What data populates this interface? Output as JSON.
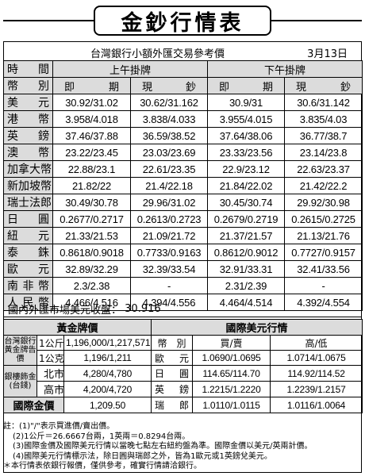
{
  "title": "金鈔行情表",
  "subtitle": "台灣銀行小額外匯交易參考價",
  "date": "3月13日",
  "fx_header": {
    "time_label": "時　間",
    "currency_label": "幣　別",
    "am_label": "上午掛牌",
    "pm_label": "下午掛牌",
    "spot_label": "即期",
    "cash_label": "現鈔"
  },
  "fx_rows": [
    {
      "currency": "美元",
      "am_spot": "30.92/31.02",
      "am_cash": "30.62/31.162",
      "pm_spot": "30.9/31",
      "pm_cash": "30.6/31.142"
    },
    {
      "currency": "港幣",
      "am_spot": "3.958/4.018",
      "am_cash": "3.838/4.033",
      "pm_spot": "3.955/4.015",
      "pm_cash": "3.835/4.03"
    },
    {
      "currency": "英鎊",
      "am_spot": "37.46/37.88",
      "am_cash": "36.59/38.52",
      "pm_spot": "37.64/38.06",
      "pm_cash": "36.77/38.7"
    },
    {
      "currency": "澳幣",
      "am_spot": "23.22/23.45",
      "am_cash": "23.03/23.69",
      "pm_spot": "23.33/23.56",
      "pm_cash": "23.14/23.8"
    },
    {
      "currency": "加拿大幣",
      "am_spot": "22.88/23.1",
      "am_cash": "22.61/23.35",
      "pm_spot": "22.9/23.12",
      "pm_cash": "22.63/23.37"
    },
    {
      "currency": "新加坡幣",
      "am_spot": "21.82/22",
      "am_cash": "21.4/22.18",
      "pm_spot": "21.84/22.02",
      "pm_cash": "21.42/22.2"
    },
    {
      "currency": "瑞士法郎",
      "am_spot": "30.49/30.78",
      "am_cash": "29.96/31.02",
      "pm_spot": "30.45/30.74",
      "pm_cash": "29.92/30.98"
    },
    {
      "currency": "日圓",
      "am_spot": "0.2677/0.2717",
      "am_cash": "0.2613/0.2723",
      "pm_spot": "0.2679/0.2719",
      "pm_cash": "0.2615/0.2725"
    },
    {
      "currency": "紐元",
      "am_spot": "21.33/21.53",
      "am_cash": "21.09/21.72",
      "pm_spot": "21.37/21.57",
      "pm_cash": "21.13/21.76"
    },
    {
      "currency": "泰銖",
      "am_spot": "0.8618/0.9018",
      "am_cash": "0.7733/0.9163",
      "pm_spot": "0.8612/0.9012",
      "pm_cash": "0.7727/0.9157"
    },
    {
      "currency": "歐元",
      "am_spot": "32.89/32.29",
      "am_cash": "32.39/33.54",
      "pm_spot": "32.91/33.31",
      "pm_cash": "32.41/33.56"
    },
    {
      "currency": "南非幣",
      "am_spot": "2.3/2.38",
      "am_cash": "-",
      "pm_spot": "2.31/2.39",
      "pm_cash": "-"
    },
    {
      "currency": "人民幣",
      "am_spot": "4.466/4.516",
      "am_cash": "4.394/4.556",
      "pm_spot": "4.464/4.514",
      "pm_cash": "4.392/4.554"
    }
  ],
  "usd_close": {
    "label": "國內外匯市場美元收盤：",
    "value": "30.916"
  },
  "gold": {
    "header": "黃金牌價",
    "bank_label": "台灣銀行黃金牌告價",
    "rows": [
      {
        "unit": "1公斤",
        "price": "1,196,000/1,217,571"
      },
      {
        "unit": "1公克",
        "price": "1,196/1,211"
      }
    ],
    "jewelry_label": "銀樓飾金(台錢)",
    "cities": [
      {
        "city": "北市",
        "price": "4,280/4,780"
      },
      {
        "city": "高市",
        "price": "4,200/4,720"
      }
    ],
    "intl_label": "國際金價",
    "intl_value": "1,209.50"
  },
  "intl_usd": {
    "header": "國際美元行情",
    "col_currency": "幣　別",
    "col_buysell": "買/賣",
    "col_highlow": "高/低",
    "rows": [
      {
        "currency": "歐元",
        "buysell": "1.0690/1.0695",
        "highlow": "1.0714/1.0675"
      },
      {
        "currency": "日圓",
        "buysell": "114.65/114.70",
        "highlow": "114.92/114.52"
      },
      {
        "currency": "英鎊",
        "buysell": "1.2215/1.2220",
        "highlow": "1.2239/1.2157"
      },
      {
        "currency": "瑞郎",
        "buysell": "1.0110/1.0115",
        "highlow": "1.0116/1.0064"
      }
    ]
  },
  "notes": [
    "註：(1)\"/\"表示買進價/賣出價。",
    "(2)1公斤＝26.6667台兩，1英兩＝0.8294台兩。",
    "(3)國際金價及國際美元行情以當晚七點左右紐約盤為準。國際金價以美元/英兩計價。",
    "(4)國際美元行情標示法，除日圓與瑞郎之外，皆為1歐元或1英鎊兌美元。",
    "＊本行情表依銀行報價，僅供參考，確實行情請洽銀行。"
  ]
}
